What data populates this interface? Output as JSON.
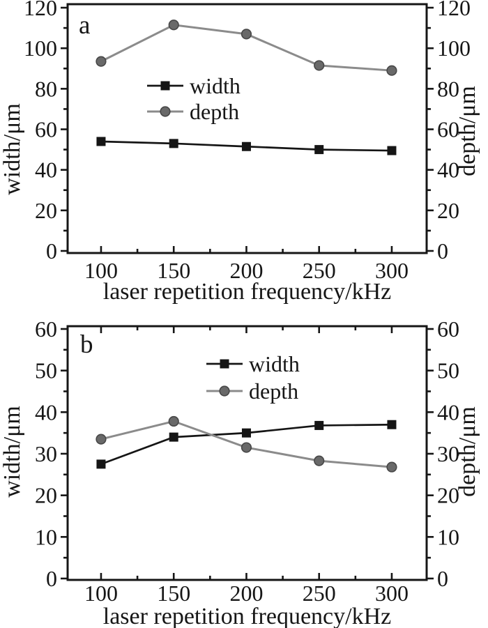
{
  "page": {
    "background": "#ffffff"
  },
  "colors": {
    "axis": "#161616",
    "text": "#161616",
    "width_series": "#151515",
    "depth_line": "#8b8b8b",
    "depth_marker_fill": "#696969",
    "depth_marker_edge": "#474747"
  },
  "chart_data": [
    {
      "type": "line",
      "panel_label": "a",
      "title": "",
      "xlabel": "laser repetition frequency/kHz",
      "ylabel_left": "width/μm",
      "ylabel_right": "depth/μm",
      "x": [
        100,
        150,
        200,
        250,
        300
      ],
      "x_ticks": [
        100,
        150,
        200,
        250,
        300
      ],
      "x_minor_ticks": [
        125,
        175,
        225,
        275
      ],
      "y_ticks": [
        0,
        20,
        40,
        60,
        80,
        100,
        120
      ],
      "y_minor_step": 10,
      "xlim": [
        77,
        324
      ],
      "ylim": [
        0,
        122
      ],
      "grid": false,
      "legend": {
        "position": "inside-upper-left",
        "entries": [
          "width",
          "depth"
        ]
      },
      "series": [
        {
          "name": "width",
          "marker": "square",
          "values": [
            54,
            53,
            51.5,
            50,
            49.5
          ]
        },
        {
          "name": "depth",
          "marker": "circle",
          "values": [
            93.5,
            111.5,
            107,
            91.5,
            89
          ]
        }
      ]
    },
    {
      "type": "line",
      "panel_label": "b",
      "title": "",
      "xlabel": "laser repetition frequency/kHz",
      "ylabel_left": "width/μm",
      "ylabel_right": "depth/μm",
      "x": [
        100,
        150,
        200,
        250,
        300
      ],
      "x_ticks": [
        100,
        150,
        200,
        250,
        300
      ],
      "x_minor_ticks": [
        125,
        175,
        225,
        275
      ],
      "y_ticks": [
        0,
        10,
        20,
        30,
        40,
        50,
        60
      ],
      "y_minor_step": 5,
      "xlim": [
        77,
        324
      ],
      "ylim": [
        0,
        61
      ],
      "grid": false,
      "legend": {
        "position": "inside-upper-center",
        "entries": [
          "width",
          "depth"
        ]
      },
      "series": [
        {
          "name": "width",
          "marker": "square",
          "values": [
            27.5,
            34,
            35,
            36.8,
            37
          ]
        },
        {
          "name": "depth",
          "marker": "circle",
          "values": [
            33.5,
            37.8,
            31.5,
            28.3,
            26.8
          ]
        }
      ]
    }
  ]
}
